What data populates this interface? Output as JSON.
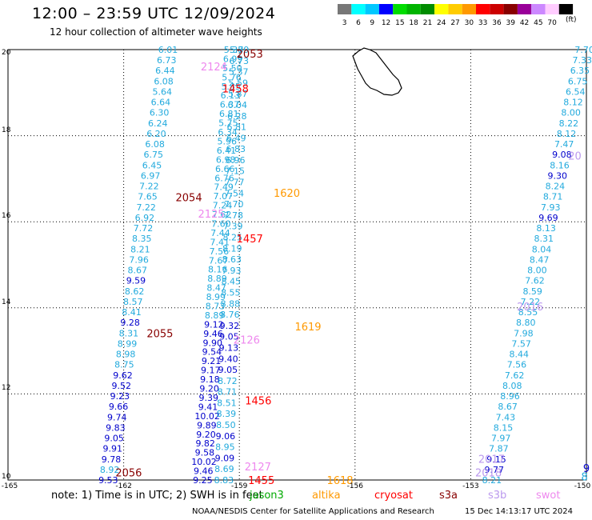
{
  "header": {
    "title": "12:00 – 23:59 UTC 12/09/2024",
    "subtitle": "12 hour collection of altimeter wave heights",
    "scale_unit": "(ft)"
  },
  "color_scale": [
    {
      "label": "3",
      "color": "#777777"
    },
    {
      "label": "6",
      "color": "#00ffff"
    },
    {
      "label": "9",
      "color": "#00c8ff"
    },
    {
      "label": "12",
      "color": "#0000ff"
    },
    {
      "label": "15",
      "color": "#00dd00"
    },
    {
      "label": "18",
      "color": "#00b400"
    },
    {
      "label": "21",
      "color": "#008c00"
    },
    {
      "label": "24",
      "color": "#ffff00"
    },
    {
      "label": "27",
      "color": "#ffcc00"
    },
    {
      "label": "30",
      "color": "#ff9900"
    },
    {
      "label": "33",
      "color": "#ff0000"
    },
    {
      "label": "36",
      "color": "#cc0000"
    },
    {
      "label": "39",
      "color": "#880000"
    },
    {
      "label": "42",
      "color": "#990099"
    },
    {
      "label": "45",
      "color": "#cc88ff"
    },
    {
      "label": "70",
      "color": "#ffccff"
    },
    {
      "label": "",
      "color": "#000000"
    }
  ],
  "axes": {
    "x_ticks": [
      "-165",
      "-162",
      "-159",
      "-156",
      "-153",
      "-150"
    ],
    "y_ticks": [
      "10",
      "12",
      "14",
      "16",
      "18",
      "20"
    ],
    "lon_range": [
      -165,
      -150
    ],
    "lat_range": [
      10,
      20
    ]
  },
  "palette": {
    "light_blue": "#22aadd",
    "dark_blue": "#0000cc",
    "time_red": "#ff0000",
    "time_dark": "#880000",
    "time_orange": "#ff9900",
    "time_pink": "#ee88ee",
    "time_lavender": "#bb99ee"
  },
  "tracks": [
    {
      "name": "jason3-a",
      "start": [
        -159.15,
        20.0
      ],
      "end": [
        -159.95,
        10.0
      ],
      "values": [
        "5.38",
        "6.99",
        "5.50",
        "5.76",
        "5.85",
        "6.13",
        "6.37",
        "6.81",
        "5.75",
        "6.34",
        "5.96",
        "6.41",
        "6.98",
        "6.66",
        "6.76",
        "7.49",
        "7.07",
        "7.24",
        "7.62",
        "7.60",
        "7.44",
        "7.41",
        "7.56",
        "7.67",
        "8.16",
        "8.89",
        "8.47",
        "8.99",
        "8.73",
        "8.89",
        "9.12",
        "9.46",
        "9.90",
        "9.54",
        "9.21",
        "9.17",
        "9.18",
        "9.20",
        "9.39",
        "9.41",
        "10.02",
        "9.89",
        "9.20",
        "9.82",
        "9.58",
        "10.02",
        "9.46",
        "9.25"
      ]
    },
    {
      "name": "jason3-b",
      "start": [
        -159.0,
        20.0
      ],
      "end": [
        -159.4,
        10.0
      ],
      "values": [
        "5.79",
        "6.73",
        "5.37",
        "5.59",
        "5.87",
        "6.04",
        "6.28",
        "6.81",
        "6.49",
        "6.83",
        "6.96",
        "7.15",
        "7.77",
        "7.54",
        "7.70",
        "7.78",
        "7.39",
        "8.25",
        "8.19",
        "8.63",
        "7.93",
        "8.45",
        "8.55",
        "8.88",
        "8.76",
        "9.32",
        "9.05",
        "9.13",
        "9.40",
        "9.05",
        "8.72",
        "8.71",
        "8.51",
        "8.39",
        "8.50",
        "9.06",
        "8.95",
        "9.09",
        "8.69",
        "8.83"
      ]
    },
    {
      "name": "saral",
      "start": [
        -160.85,
        20.0
      ],
      "end": [
        -162.4,
        10.0
      ],
      "values": [
        "6.01",
        "6.73",
        "6.44",
        "6.08",
        "5.64",
        "6.64",
        "6.30",
        "6.24",
        "6.20",
        "6.08",
        "6.75",
        "6.45",
        "6.97",
        "7.22",
        "7.65",
        "7.22",
        "6.92",
        "7.72",
        "8.35",
        "8.21",
        "7.96",
        "8.67",
        "9.59",
        "8.62",
        "8.57",
        "8.41",
        "9.28",
        "8.31",
        "8.99",
        "8.98",
        "8.75",
        "9.62",
        "9.52",
        "9.23",
        "9.66",
        "9.74",
        "9.83",
        "9.05",
        "9.91",
        "9.78",
        "8.92",
        "9.53"
      ]
    },
    {
      "name": "cryosat",
      "start": [
        -150.05,
        20.0
      ],
      "end": [
        -152.45,
        10.0
      ],
      "values": [
        "7.70",
        "7.33",
        "6.35",
        "6.75",
        "6.54",
        "8.12",
        "8.00",
        "8.22",
        "8.12",
        "7.47",
        "9.08",
        "8.16",
        "9.30",
        "8.24",
        "8.71",
        "7.93",
        "9.69",
        "8.13",
        "8.31",
        "8.04",
        "8.47",
        "8.00",
        "7.62",
        "8.59",
        "7.22",
        "8.55",
        "8.80",
        "7.98",
        "7.57",
        "8.44",
        "7.56",
        "7.62",
        "8.08",
        "8.96",
        "8.67",
        "7.43",
        "8.15",
        "7.97",
        "7.87",
        "9.15",
        "9.77",
        "8.21"
      ]
    }
  ],
  "pass_times": [
    {
      "text": "2053",
      "color": "#880000",
      "lon": -158.73,
      "lat": 19.91
    },
    {
      "text": "2124",
      "color": "#ee88ee",
      "lon": -159.66,
      "lat": 19.61
    },
    {
      "text": "1458",
      "color": "#ff0000",
      "lon": -159.1,
      "lat": 19.1
    },
    {
      "text": "20",
      "color": "#bb99ee",
      "lon": -150.3,
      "lat": 17.54
    },
    {
      "text": "1620",
      "color": "#ff9900",
      "lon": -157.77,
      "lat": 16.67
    },
    {
      "text": "2054",
      "color": "#880000",
      "lon": -160.31,
      "lat": 16.57
    },
    {
      "text": "2125",
      "color": "#ee88ee",
      "lon": -159.73,
      "lat": 16.19
    },
    {
      "text": "1457",
      "color": "#ff0000",
      "lon": -158.73,
      "lat": 15.61
    },
    {
      "text": "2016",
      "color": "#bb99ee",
      "lon": -151.46,
      "lat": 14.03
    },
    {
      "text": "1619",
      "color": "#ff9900",
      "lon": -157.22,
      "lat": 13.57
    },
    {
      "text": "2055",
      "color": "#880000",
      "lon": -161.06,
      "lat": 13.41
    },
    {
      "text": "2126",
      "color": "#ee88ee",
      "lon": -158.81,
      "lat": 13.26
    },
    {
      "text": "1456",
      "color": "#ff0000",
      "lon": -158.51,
      "lat": 11.85
    },
    {
      "text": "2017",
      "color": "#bb99ee",
      "lon": -152.46,
      "lat": 10.49
    },
    {
      "text": "2127",
      "color": "#ee88ee",
      "lon": -158.52,
      "lat": 10.32
    },
    {
      "text": "2056",
      "color": "#880000",
      "lon": -161.87,
      "lat": 10.18
    },
    {
      "text": "2018",
      "color": "#bb99ee",
      "lon": -152.54,
      "lat": 10.18
    },
    {
      "text": "1455",
      "color": "#ff0000",
      "lon": -158.43,
      "lat": 10.0
    },
    {
      "text": "1618",
      "color": "#ff9900",
      "lon": -156.39,
      "lat": 10.0
    },
    {
      "text": "9",
      "color": "#0000cc",
      "lon": -150.0,
      "lat": 10.28
    },
    {
      "text": "8",
      "color": "#22aadd",
      "lon": -150.05,
      "lat": 10.08
    }
  ],
  "note": {
    "prefix": "note: 1) Time is in UTC; 2) SWH is in feet",
    "legend": [
      {
        "label": "jason3",
        "color": "#00aa00"
      },
      {
        "label": "altika",
        "color": "#ff9900"
      },
      {
        "label": "cryosat",
        "color": "#ff0000"
      },
      {
        "label": "s3a",
        "color": "#880000"
      },
      {
        "label": "s3b",
        "color": "#bb99ee"
      },
      {
        "label": "swot",
        "color": "#ee88ee"
      }
    ]
  },
  "footer": {
    "org": "NOAA/NESDIS Center for Satellite Applications and Research",
    "date": "15 Dec 14:13:17 UTC 2024"
  }
}
